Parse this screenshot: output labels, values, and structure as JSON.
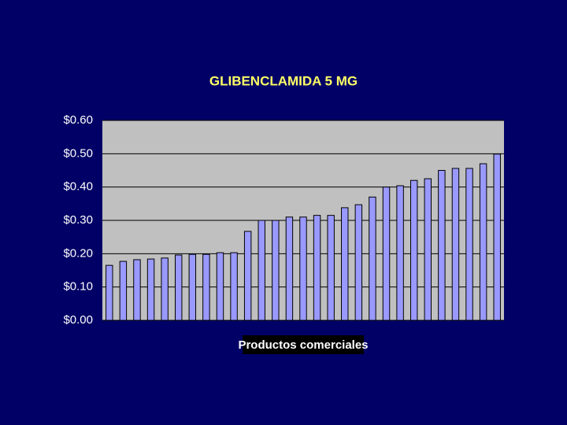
{
  "chart_data": {
    "type": "bar",
    "title": "GLIBENCLAMIDA 5 MG",
    "x_label": "Productos comerciales",
    "categories": [
      null,
      null,
      null,
      null,
      null,
      null,
      null,
      null,
      null,
      null,
      null,
      null,
      null,
      null,
      null,
      null,
      null,
      null,
      null,
      null,
      null,
      null,
      null,
      null,
      null,
      null,
      null,
      null,
      null
    ],
    "values": [
      0.165,
      0.177,
      0.182,
      0.184,
      0.187,
      0.196,
      0.198,
      0.198,
      0.203,
      0.203,
      0.267,
      0.3,
      0.3,
      0.31,
      0.31,
      0.315,
      0.315,
      0.338,
      0.347,
      0.37,
      0.4,
      0.404,
      0.42,
      0.425,
      0.45,
      0.456,
      0.456,
      0.47,
      0.499
    ],
    "color": "#9999ff",
    "ylim": [
      0,
      0.6
    ],
    "yticks": [
      {
        "value": 0,
        "label": "$0.00"
      },
      {
        "value": 0.1,
        "label": "$0.10"
      },
      {
        "value": 0.2,
        "label": "$0.20"
      },
      {
        "value": 0.3,
        "label": "$0.30"
      },
      {
        "value": 0.4,
        "label": "$0.40"
      },
      {
        "value": 0.5,
        "label": "$0.50"
      },
      {
        "value": 0.6,
        "label": "$0.60"
      }
    ],
    "grid": true
  }
}
